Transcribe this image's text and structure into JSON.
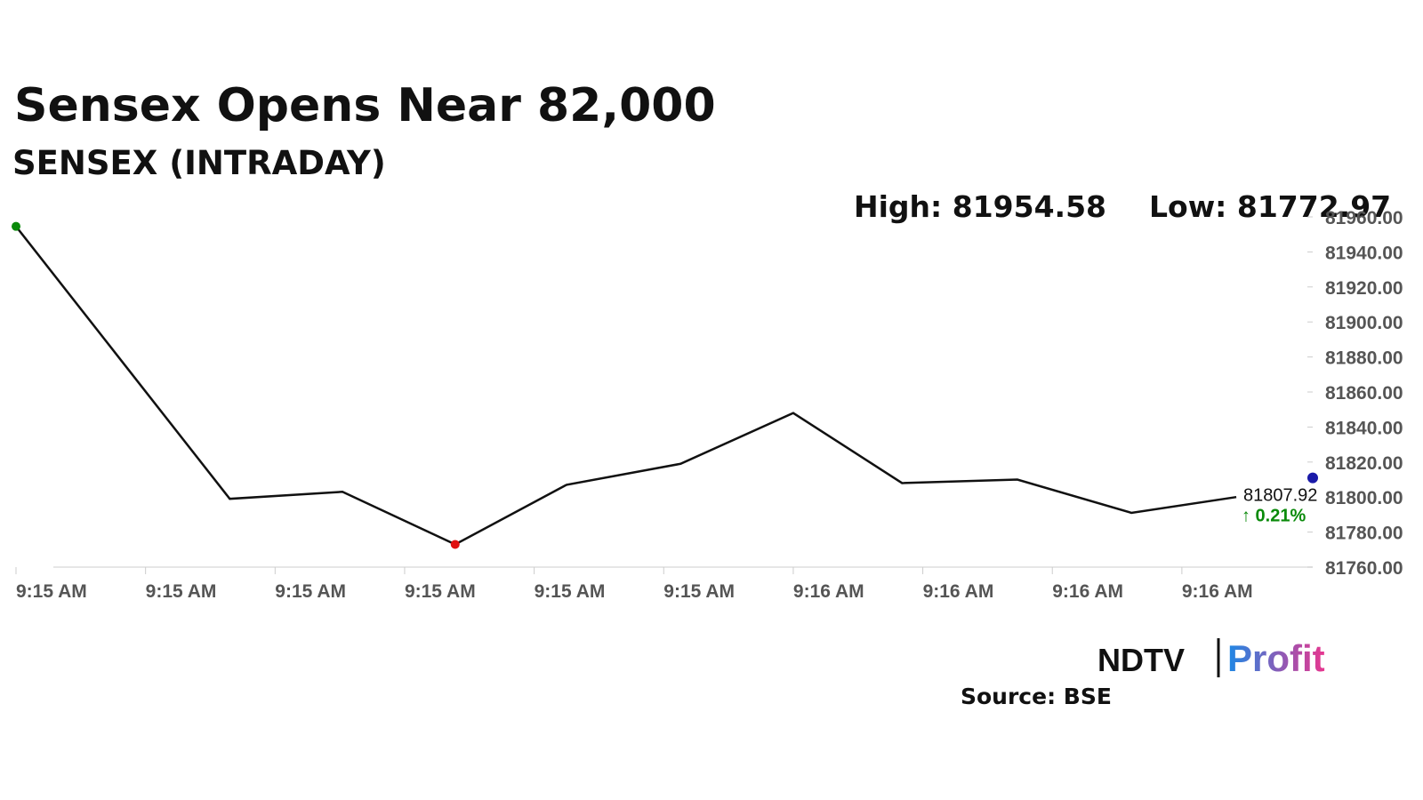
{
  "chart_data": {
    "type": "line",
    "title": "Sensex Opens Near 82,000",
    "subtitle": "SENSEX (INTRADAY)",
    "high_text": "High: 81954.58",
    "low_text": "Low: 81772.97",
    "x": [
      0,
      1.65,
      2.52,
      3.39,
      4.25,
      5.13,
      6.0,
      6.84,
      7.73,
      8.61,
      9.42
    ],
    "series": [
      {
        "color": "#111111",
        "values": [
          81954.58,
          81799,
          81803,
          81772.97,
          81807,
          81819,
          81848,
          81808,
          81810,
          81791,
          81800
        ]
      }
    ],
    "high_index": 0,
    "high_color": "#0a8a0a",
    "low_index": 3,
    "low_color": "#e01010",
    "last": {
      "x": 10.01,
      "value": 81807.92,
      "color": "#1a1aa8",
      "change": "↑ 0.21%",
      "change_color": "#0a8a0a"
    },
    "xlim": [
      0,
      10.01
    ],
    "xticks": [
      {
        "value": 0,
        "label": "9:15 AM"
      },
      {
        "value": 1,
        "label": "9:15 AM"
      },
      {
        "value": 2,
        "label": "9:15 AM"
      },
      {
        "value": 3,
        "label": "9:15 AM"
      },
      {
        "value": 4,
        "label": "9:15 AM"
      },
      {
        "value": 5,
        "label": "9:15 AM"
      },
      {
        "value": 6,
        "label": "9:16 AM"
      },
      {
        "value": 7,
        "label": "9:16 AM"
      },
      {
        "value": 8,
        "label": "9:16 AM"
      },
      {
        "value": 9,
        "label": "9:16 AM"
      }
    ],
    "ylim": [
      81760,
      81960
    ],
    "yticks": [
      {
        "value": 81760,
        "label": "81760.00"
      },
      {
        "value": 81780,
        "label": "81780.00"
      },
      {
        "value": 81800,
        "label": "81800.00"
      },
      {
        "value": 81820,
        "label": "81820.00"
      },
      {
        "value": 81840,
        "label": "81840.00"
      },
      {
        "value": 81860,
        "label": "81860.00"
      },
      {
        "value": 81880,
        "label": "81880.00"
      },
      {
        "value": 81900,
        "label": "81900.00"
      },
      {
        "value": 81920,
        "label": "81920.00"
      },
      {
        "value": 81940,
        "label": "81940.00"
      },
      {
        "value": 81960,
        "label": "81960.00"
      }
    ],
    "logo": {
      "left": "NDTV",
      "right": "Profit"
    },
    "source": "Source: BSE"
  }
}
